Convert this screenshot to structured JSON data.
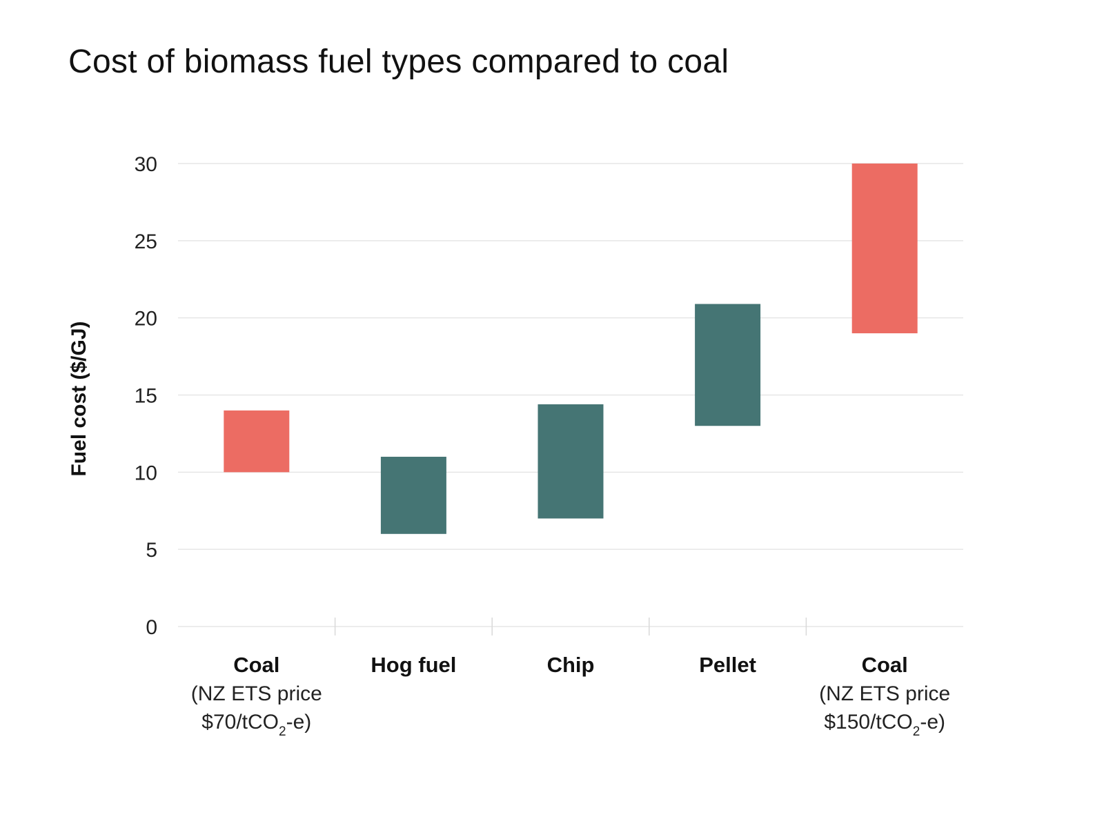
{
  "chart_data": {
    "type": "bar",
    "subtype": "floating-range",
    "title": "Cost of biomass fuel types compared to coal",
    "xlabel": "",
    "ylabel": "Fuel cost ($/GJ)",
    "ylim": [
      0,
      30
    ],
    "yticks": [
      0,
      5,
      10,
      15,
      20,
      25,
      30
    ],
    "grid": true,
    "legend": "none",
    "colors": {
      "coal": "#ec6c63",
      "biomass": "#457574"
    },
    "categories": [
      {
        "name": "Coal",
        "line2": "(NZ ETS price",
        "line3_prefix": "$70/tCO",
        "line3_sub": "2",
        "line3_suffix": "-e)",
        "low": 10,
        "high": 14,
        "color_key": "coal"
      },
      {
        "name": "Hog fuel",
        "low": 6,
        "high": 11,
        "color_key": "biomass"
      },
      {
        "name": "Chip",
        "low": 7,
        "high": 14.4,
        "color_key": "biomass"
      },
      {
        "name": "Pellet",
        "low": 13,
        "high": 20.9,
        "color_key": "biomass"
      },
      {
        "name": "Coal",
        "line2": "(NZ ETS price",
        "line3_prefix": "$150/tCO",
        "line3_sub": "2",
        "line3_suffix": "-e)",
        "low": 19,
        "high": 30,
        "color_key": "coal"
      }
    ]
  }
}
